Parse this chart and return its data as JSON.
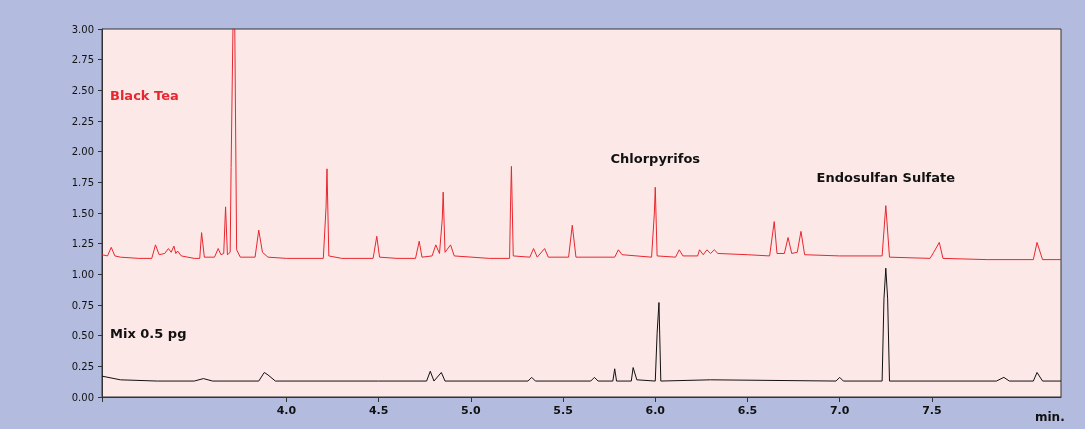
{
  "chart_data": {
    "type": "line",
    "xlabel": "min.",
    "xlim": [
      3.0,
      8.2
    ],
    "xticks": [
      {
        "value": 3,
        "label": null
      },
      {
        "value": 4,
        "label": "4.0"
      },
      {
        "value": 4.5,
        "label": "4.5"
      },
      {
        "value": 5,
        "label": "5.0"
      },
      {
        "value": 5.5,
        "label": "5.5"
      },
      {
        "value": 6,
        "label": "6.0"
      },
      {
        "value": 6.5,
        "label": "6.5"
      },
      {
        "value": 7,
        "label": "7.0"
      },
      {
        "value": 7.5,
        "label": "7.5"
      }
    ],
    "ylim": [
      0,
      3
    ],
    "yticks": [
      {
        "value": 0,
        "label": "0.00"
      },
      {
        "value": 0.25,
        "label": "0.25"
      },
      {
        "value": 0.5,
        "label": "0.50"
      },
      {
        "value": 0.75,
        "label": "0.75"
      },
      {
        "value": 1,
        "label": "1.00"
      },
      {
        "value": 1.25,
        "label": "1.25"
      },
      {
        "value": 1.5,
        "label": "1.50"
      },
      {
        "value": 1.75,
        "label": "1.75"
      },
      {
        "value": 2,
        "label": "2.00"
      },
      {
        "value": 2.25,
        "label": "2.25"
      },
      {
        "value": 2.5,
        "label": "2.50"
      },
      {
        "value": 2.75,
        "label": "2.75"
      },
      {
        "value": 3,
        "label": "3.00"
      }
    ],
    "grid": false,
    "legend": false,
    "marker": "none",
    "line_style": "solid",
    "annotations": [
      {
        "text": "Chlorpyrifos",
        "x": 6.0,
        "y": 1.71
      },
      {
        "text": "Endosulfan Sulfate",
        "x": 7.25,
        "y": 1.56
      }
    ],
    "series": [
      {
        "name": "Black Tea",
        "color": "#e8262e",
        "x": [
          3.0,
          3.03,
          3.05,
          3.07,
          3.1,
          3.2,
          3.27,
          3.29,
          3.31,
          3.34,
          3.36,
          3.375,
          3.39,
          3.4,
          3.41,
          3.43,
          3.5,
          3.53,
          3.54,
          3.555,
          3.61,
          3.63,
          3.645,
          3.66,
          3.67,
          3.68,
          3.695,
          3.7,
          3.71,
          3.72,
          3.73,
          3.75,
          3.83,
          3.85,
          3.87,
          3.9,
          4.0,
          4.2,
          4.215,
          4.22,
          4.23,
          4.3,
          4.47,
          4.49,
          4.505,
          4.6,
          4.7,
          4.72,
          4.735,
          4.79,
          4.81,
          4.83,
          4.845,
          4.85,
          4.86,
          4.89,
          4.91,
          5.1,
          5.21,
          5.215,
          5.22,
          5.23,
          5.32,
          5.34,
          5.36,
          5.4,
          5.42,
          5.53,
          5.55,
          5.57,
          5.78,
          5.8,
          5.82,
          5.98,
          5.995,
          6.0,
          6.01,
          6.11,
          6.13,
          6.15,
          6.23,
          6.24,
          6.26,
          6.28,
          6.3,
          6.32,
          6.34,
          6.5,
          6.62,
          6.645,
          6.66,
          6.7,
          6.72,
          6.74,
          6.77,
          6.79,
          6.81,
          7.0,
          7.23,
          7.25,
          7.27,
          7.49,
          7.51,
          7.54,
          7.56,
          7.8,
          8.05,
          8.07,
          8.1,
          8.2
        ],
        "values": [
          1.16,
          1.15,
          1.22,
          1.15,
          1.14,
          1.13,
          1.13,
          1.24,
          1.16,
          1.17,
          1.21,
          1.18,
          1.23,
          1.17,
          1.19,
          1.15,
          1.13,
          1.13,
          1.34,
          1.14,
          1.14,
          1.21,
          1.16,
          1.17,
          1.55,
          1.16,
          1.18,
          1.87,
          3.0,
          3.0,
          1.2,
          1.14,
          1.14,
          1.36,
          1.18,
          1.14,
          1.13,
          1.13,
          1.55,
          1.86,
          1.15,
          1.13,
          1.13,
          1.31,
          1.14,
          1.13,
          1.13,
          1.27,
          1.14,
          1.15,
          1.24,
          1.17,
          1.45,
          1.67,
          1.18,
          1.24,
          1.15,
          1.13,
          1.13,
          1.55,
          1.88,
          1.15,
          1.14,
          1.21,
          1.14,
          1.21,
          1.14,
          1.14,
          1.4,
          1.14,
          1.14,
          1.2,
          1.16,
          1.14,
          1.5,
          1.71,
          1.15,
          1.14,
          1.2,
          1.15,
          1.15,
          1.2,
          1.16,
          1.2,
          1.17,
          1.2,
          1.17,
          1.16,
          1.15,
          1.43,
          1.17,
          1.17,
          1.3,
          1.17,
          1.18,
          1.35,
          1.16,
          1.15,
          1.15,
          1.56,
          1.14,
          1.13,
          1.18,
          1.26,
          1.13,
          1.12,
          1.12,
          1.26,
          1.12,
          1.12
        ]
      },
      {
        "name": "Mix 0.5 pg",
        "color": "#111111",
        "x": [
          3.0,
          3.1,
          3.3,
          3.5,
          3.55,
          3.6,
          3.85,
          3.88,
          3.9,
          3.94,
          4.5,
          4.76,
          4.78,
          4.8,
          4.84,
          4.86,
          5.31,
          5.33,
          5.35,
          5.65,
          5.67,
          5.69,
          5.77,
          5.78,
          5.79,
          5.87,
          5.88,
          5.9,
          6.0,
          6.01,
          6.02,
          6.03,
          6.3,
          6.98,
          7.0,
          7.02,
          7.23,
          7.24,
          7.25,
          7.26,
          7.27,
          7.85,
          7.89,
          7.92,
          8.05,
          8.07,
          8.1,
          8.2
        ],
        "values": [
          0.17,
          0.14,
          0.13,
          0.13,
          0.15,
          0.13,
          0.13,
          0.2,
          0.18,
          0.13,
          0.13,
          0.13,
          0.21,
          0.13,
          0.2,
          0.13,
          0.13,
          0.16,
          0.13,
          0.13,
          0.16,
          0.13,
          0.13,
          0.23,
          0.13,
          0.13,
          0.24,
          0.14,
          0.13,
          0.52,
          0.77,
          0.13,
          0.14,
          0.13,
          0.16,
          0.13,
          0.13,
          0.8,
          1.05,
          0.8,
          0.13,
          0.13,
          0.16,
          0.13,
          0.13,
          0.2,
          0.13,
          0.13
        ]
      }
    ]
  }
}
